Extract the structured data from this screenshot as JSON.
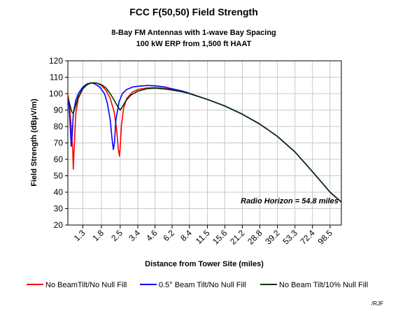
{
  "chart_data": {
    "type": "line",
    "title": "FCC F(50,50) Field Strength",
    "subtitle_lines": [
      "8-Bay FM Antennas with 1-wave Bay Spacing",
      "100 kW ERP from 1,500 ft HAAT"
    ],
    "xlabel": "Distance from Tower Site (miles)",
    "ylabel": "Field Strength (dBµV/m)",
    "x_scale": "log",
    "xlim": [
      1.0,
      120
    ],
    "ylim": [
      20,
      120
    ],
    "y_ticks": [
      20,
      30,
      40,
      50,
      60,
      70,
      80,
      90,
      100,
      110,
      120
    ],
    "x_ticks": [
      "1.3",
      "1.8",
      "2.5",
      "3.4",
      "4.6",
      "6.2",
      "8.4",
      "11.5",
      "15.6",
      "21.2",
      "28.8",
      "39.2",
      "53.3",
      "72.4",
      "98.5"
    ],
    "grid": true,
    "legend_position": "bottom",
    "annotation": "Radio Horizon = 54.8 miles",
    "credit": "/RJF",
    "series": [
      {
        "name": "No BeamTilt/No Null Fill",
        "color": "#ff0000",
        "x": [
          1.0,
          1.03,
          1.06,
          1.09,
          1.1,
          1.12,
          1.15,
          1.2,
          1.3,
          1.4,
          1.5,
          1.65,
          1.8,
          1.95,
          2.1,
          2.25,
          2.35,
          2.42,
          2.47,
          2.5,
          2.55,
          2.65,
          2.8,
          3.1,
          3.4,
          4.0,
          4.6,
          5.5,
          6.2,
          7.5,
          8.4,
          11.5,
          15.6,
          21.2,
          28.8,
          39.2,
          53.3,
          72.4,
          98.5,
          120
        ],
        "y": [
          100,
          92,
          80,
          65,
          54,
          70,
          88,
          97,
          103,
          105.5,
          106.5,
          106.5,
          105,
          102,
          97,
          89,
          78,
          66,
          62,
          67,
          80,
          91,
          97,
          101,
          102.5,
          103.5,
          103.7,
          103.2,
          102.5,
          101,
          100,
          96.5,
          92.5,
          87.5,
          81.5,
          74,
          64.5,
          52.5,
          40,
          34
        ]
      },
      {
        "name": "0.5° Beam Tilt/No Null Fill",
        "color": "#0000ff",
        "x": [
          1.0,
          1.02,
          1.04,
          1.06,
          1.08,
          1.1,
          1.15,
          1.2,
          1.3,
          1.4,
          1.5,
          1.6,
          1.75,
          1.9,
          2.0,
          2.1,
          2.17,
          2.22,
          2.26,
          2.32,
          2.45,
          2.6,
          2.8,
          3.1,
          3.4,
          4.0,
          4.6,
          5.5,
          6.2,
          7.5,
          8.4,
          11.5,
          15.6,
          21.2,
          28.8,
          39.2,
          53.3,
          72.4,
          98.5,
          120
        ],
        "y": [
          98,
          93,
          82,
          68,
          75,
          88,
          96,
          100,
          104,
          106,
          106.5,
          106,
          104,
          100,
          94,
          84,
          72,
          66,
          70,
          84,
          95,
          100,
          102.5,
          104,
          104.5,
          105,
          104.8,
          104,
          103,
          101.5,
          100.2,
          96.5,
          92.5,
          87.5,
          81.5,
          74,
          64.5,
          52.5,
          40,
          34
        ]
      },
      {
        "name": "No Beam Tilt/10% Null Fill",
        "color": "#003300",
        "x": [
          1.0,
          1.03,
          1.07,
          1.1,
          1.15,
          1.2,
          1.3,
          1.4,
          1.5,
          1.65,
          1.8,
          1.95,
          2.1,
          2.25,
          2.4,
          2.5,
          2.6,
          2.75,
          3.0,
          3.4,
          4.0,
          4.6,
          5.5,
          6.2,
          7.5,
          8.4,
          11.5,
          15.6,
          21.2,
          28.8,
          39.2,
          53.3,
          72.4,
          98.5,
          120
        ],
        "y": [
          98,
          94,
          89,
          88,
          93,
          98,
          103,
          105.5,
          106.5,
          106.5,
          105.5,
          103.5,
          100,
          96,
          92,
          90,
          92,
          95.5,
          99,
          101.5,
          103,
          103.3,
          102.8,
          102.2,
          101,
          100,
          96.5,
          92.5,
          87.5,
          81.5,
          74,
          64.5,
          52.5,
          40,
          34
        ]
      }
    ]
  }
}
